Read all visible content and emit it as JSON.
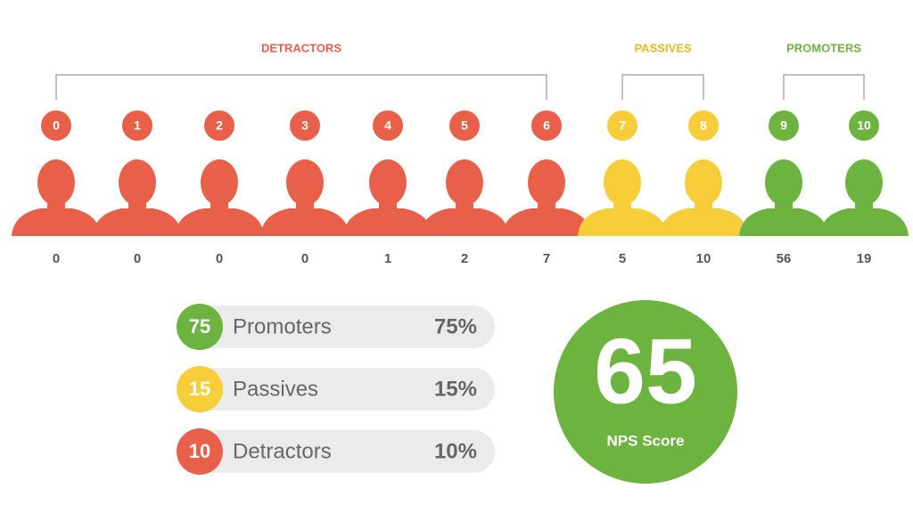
{
  "groups": [
    {
      "label": "DETRACTORS"
    },
    {
      "label": "PASSIVES"
    },
    {
      "label": "PROMOTERS"
    }
  ],
  "scores": [
    {
      "score": 0,
      "count": 0
    },
    {
      "score": 1,
      "count": 0
    },
    {
      "score": 2,
      "count": 0
    },
    {
      "score": 3,
      "count": 0
    },
    {
      "score": 4,
      "count": 1
    },
    {
      "score": 5,
      "count": 2
    },
    {
      "score": 6,
      "count": 7
    },
    {
      "score": 7,
      "count": 5
    },
    {
      "score": 8,
      "count": 10
    },
    {
      "score": 9,
      "count": 56
    },
    {
      "score": 10,
      "count": 19
    }
  ],
  "summary": [
    {
      "count": 75,
      "label": "Promoters",
      "percent": "75%"
    },
    {
      "count": 15,
      "label": "Passives",
      "percent": "15%"
    },
    {
      "count": 10,
      "label": "Detractors",
      "percent": "10%"
    }
  ],
  "nps": {
    "score": 65,
    "label": "NPS Score"
  }
}
